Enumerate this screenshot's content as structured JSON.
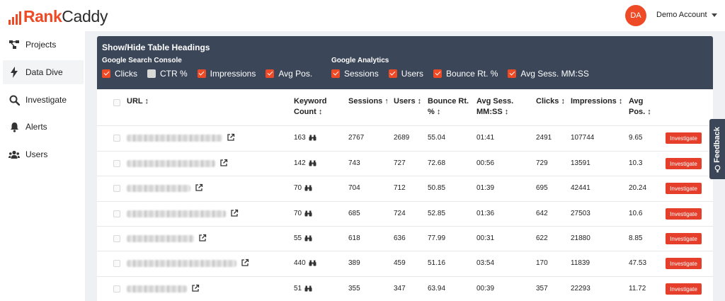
{
  "app": {
    "logo_rank": "Rank",
    "logo_caddy": "Caddy",
    "avatar_initials": "DA",
    "account_name": "Demo Account",
    "accent_color": "#ef4a26"
  },
  "sidebar": {
    "items": [
      {
        "label": "Projects",
        "icon": "projects-icon"
      },
      {
        "label": "Data Dive",
        "icon": "lightning-icon",
        "active": true
      },
      {
        "label": "Investigate",
        "icon": "search-icon"
      },
      {
        "label": "Alerts",
        "icon": "bell-icon"
      },
      {
        "label": "Users",
        "icon": "users-icon"
      }
    ]
  },
  "headings_panel": {
    "title": "Show/Hide Table Headings",
    "gsc_label": "Google Search Console",
    "ga_label": "Google Analytics",
    "gsc_options": [
      {
        "label": "Clicks",
        "checked": true
      },
      {
        "label": "CTR %",
        "checked": false
      },
      {
        "label": "Impressions",
        "checked": true
      },
      {
        "label": "Avg Pos.",
        "checked": true
      }
    ],
    "ga_options": [
      {
        "label": "Sessions",
        "checked": true
      },
      {
        "label": "Users",
        "checked": true
      },
      {
        "label": "Bounce Rt. %",
        "checked": true
      },
      {
        "label": "Avg Sess. MM:SS",
        "checked": true
      }
    ]
  },
  "table": {
    "headers": {
      "url": "URL ↕",
      "keyword_count_1": "Keyword",
      "keyword_count_2": "Count ↕",
      "sessions": "Sessions ↑",
      "users": "Users ↕",
      "bounce_1": "Bounce Rt.",
      "bounce_2": "% ↕",
      "avg_sess_1": "Avg Sess.",
      "avg_sess_2": "MM:SS ↕",
      "clicks": "Clicks ↕",
      "impressions": "Impressions ↕",
      "avg_pos_1": "Avg",
      "avg_pos_2": "Pos. ↕"
    },
    "investigate_label": "Investigate",
    "rows": [
      {
        "keyword_count": "163",
        "sessions": "2767",
        "users": "2689",
        "bounce": "55.04",
        "avg_sess": "01:41",
        "clicks": "2491",
        "impressions": "107744",
        "avg_pos": "9.65"
      },
      {
        "keyword_count": "142",
        "sessions": "743",
        "users": "727",
        "bounce": "72.68",
        "avg_sess": "00:56",
        "clicks": "729",
        "impressions": "13591",
        "avg_pos": "10.3"
      },
      {
        "keyword_count": "70",
        "sessions": "704",
        "users": "712",
        "bounce": "50.85",
        "avg_sess": "01:39",
        "clicks": "695",
        "impressions": "42441",
        "avg_pos": "20.24"
      },
      {
        "keyword_count": "70",
        "sessions": "685",
        "users": "724",
        "bounce": "52.85",
        "avg_sess": "01:36",
        "clicks": "642",
        "impressions": "27503",
        "avg_pos": "10.6"
      },
      {
        "keyword_count": "55",
        "sessions": "618",
        "users": "636",
        "bounce": "77.99",
        "avg_sess": "00:31",
        "clicks": "622",
        "impressions": "21880",
        "avg_pos": "8.85"
      },
      {
        "keyword_count": "440",
        "sessions": "389",
        "users": "459",
        "bounce": "51.16",
        "avg_sess": "03:54",
        "clicks": "170",
        "impressions": "11839",
        "avg_pos": "47.53"
      },
      {
        "keyword_count": "51",
        "sessions": "355",
        "users": "347",
        "bounce": "63.94",
        "avg_sess": "00:39",
        "clicks": "357",
        "impressions": "22293",
        "avg_pos": "11.72"
      }
    ]
  },
  "feedback": {
    "label": "Feedback"
  }
}
